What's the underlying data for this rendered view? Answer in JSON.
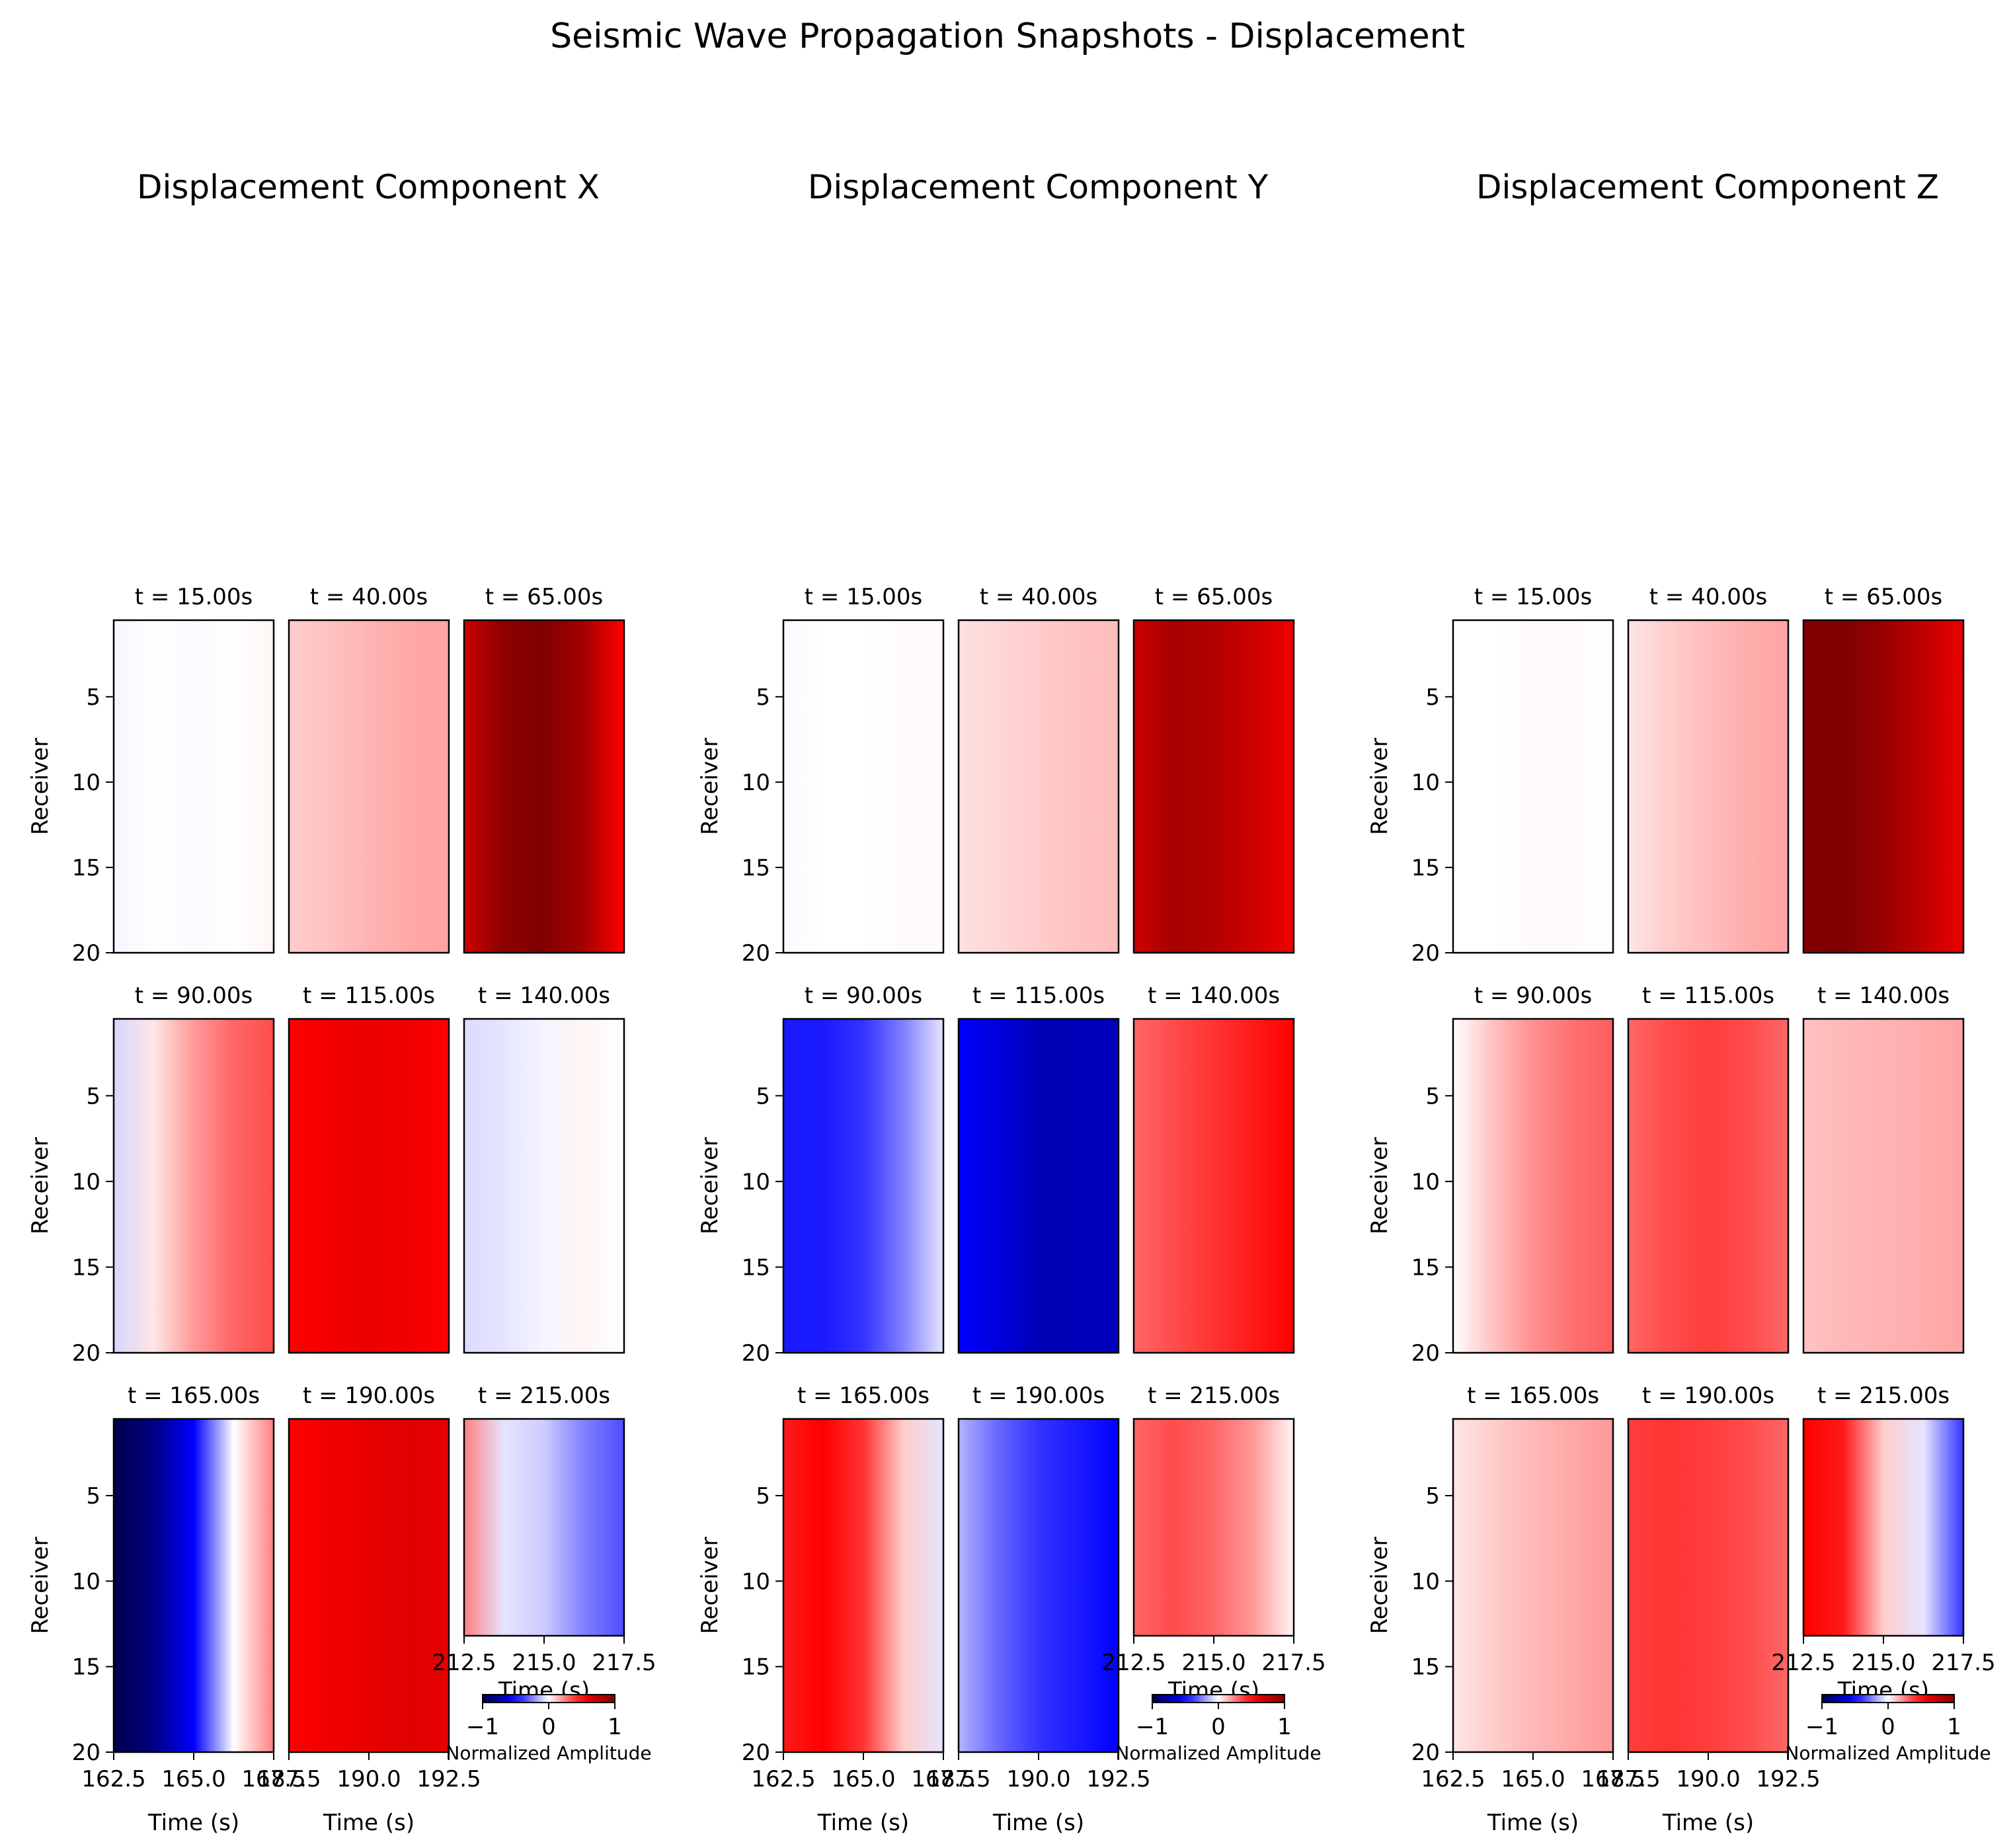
{
  "figure_title": "Seismic Wave Propagation Snapshots - Displacement",
  "colors": {
    "negative": "#0000ff",
    "zero": "#ffffff",
    "positive": "#ff0000",
    "dark_positive": "#800000",
    "dark_negative": "#000080"
  },
  "colorbar": {
    "label": "Normalized Amplitude",
    "ticks": [
      "−1",
      "0",
      "1"
    ],
    "range": [
      -1,
      1
    ]
  },
  "axis_labels": {
    "y": "Receiver",
    "x": "Time (s)"
  },
  "y_ticks": [
    "5",
    "10",
    "15",
    "20"
  ],
  "x_ticks": {
    "col0": [
      "162.5",
      "165.0",
      "167.5"
    ],
    "col1": [
      "187.5",
      "190.0",
      "192.5"
    ],
    "col2": [
      "212.5",
      "215.0",
      "217.5"
    ]
  },
  "chart_data": {
    "type": "heatmap",
    "colormap": "seismic",
    "value_range": [
      -1,
      1
    ],
    "receivers": [
      1,
      20
    ],
    "components": [
      {
        "title": "Displacement Component X",
        "snapshots": [
          {
            "label": "t = 15.00s",
            "profile": [
              -0.02,
              0.0,
              -0.01,
              0.0,
              0.02
            ]
          },
          {
            "label": "t = 40.00s",
            "profile": [
              0.1,
              0.12,
              0.15,
              0.17,
              0.18
            ]
          },
          {
            "label": "t = 65.00s",
            "profile": [
              0.7,
              0.95,
              1.0,
              0.85,
              0.5
            ]
          },
          {
            "label": "t = 90.00s",
            "profile": [
              -0.08,
              0.05,
              0.2,
              0.3,
              0.35
            ]
          },
          {
            "label": "t = 115.00s",
            "profile": [
              0.5,
              0.55,
              0.58,
              0.55,
              0.5
            ]
          },
          {
            "label": "t = 140.00s",
            "profile": [
              -0.07,
              -0.05,
              -0.02,
              0.02,
              0.0
            ]
          },
          {
            "label": "t = 165.00s",
            "profile": [
              -1.0,
              -0.85,
              -0.5,
              0.0,
              0.25
            ]
          },
          {
            "label": "t = 190.00s",
            "profile": [
              0.5,
              0.55,
              0.6,
              0.62,
              0.6
            ]
          },
          {
            "label": "t = 215.00s",
            "profile": [
              0.25,
              -0.05,
              -0.1,
              -0.25,
              -0.35
            ]
          }
        ]
      },
      {
        "title": "Displacement Component Y",
        "snapshots": [
          {
            "label": "t = 15.00s",
            "profile": [
              -0.01,
              0.0,
              0.0,
              0.01,
              0.01
            ]
          },
          {
            "label": "t = 40.00s",
            "profile": [
              0.06,
              0.08,
              0.1,
              0.12,
              0.13
            ]
          },
          {
            "label": "t = 65.00s",
            "profile": [
              0.7,
              0.85,
              0.8,
              0.7,
              0.55
            ]
          },
          {
            "label": "t = 90.00s",
            "profile": [
              -0.45,
              -0.45,
              -0.4,
              -0.25,
              -0.05
            ]
          },
          {
            "label": "t = 115.00s",
            "profile": [
              -0.5,
              -0.6,
              -0.7,
              -0.7,
              -0.68
            ]
          },
          {
            "label": "t = 140.00s",
            "profile": [
              0.3,
              0.35,
              0.4,
              0.45,
              0.5
            ]
          },
          {
            "label": "t = 165.00s",
            "profile": [
              0.45,
              0.5,
              0.4,
              0.1,
              -0.05
            ]
          },
          {
            "label": "t = 190.00s",
            "profile": [
              -0.15,
              -0.3,
              -0.4,
              -0.45,
              -0.5
            ]
          },
          {
            "label": "t = 215.00s",
            "profile": [
              0.3,
              0.35,
              0.3,
              0.2,
              0.02
            ]
          }
        ]
      },
      {
        "title": "Displacement Component Z",
        "snapshots": [
          {
            "label": "t = 15.00s",
            "profile": [
              0.0,
              0.0,
              0.01,
              0.01,
              0.0
            ]
          },
          {
            "label": "t = 40.00s",
            "profile": [
              0.05,
              0.1,
              0.13,
              0.16,
              0.18
            ]
          },
          {
            "label": "t = 65.00s",
            "profile": [
              0.98,
              1.0,
              0.9,
              0.75,
              0.58
            ]
          },
          {
            "label": "t = 90.00s",
            "profile": [
              0.0,
              0.12,
              0.22,
              0.28,
              0.32
            ]
          },
          {
            "label": "t = 115.00s",
            "profile": [
              0.3,
              0.35,
              0.38,
              0.35,
              0.3
            ]
          },
          {
            "label": "t = 140.00s",
            "profile": [
              0.12,
              0.14,
              0.15,
              0.16,
              0.18
            ]
          },
          {
            "label": "t = 165.00s",
            "profile": [
              0.05,
              0.1,
              0.14,
              0.17,
              0.2
            ]
          },
          {
            "label": "t = 190.00s",
            "profile": [
              0.38,
              0.4,
              0.38,
              0.35,
              0.3
            ]
          },
          {
            "label": "t = 215.00s",
            "profile": [
              0.5,
              0.45,
              0.1,
              -0.05,
              -0.4
            ]
          }
        ]
      }
    ]
  }
}
